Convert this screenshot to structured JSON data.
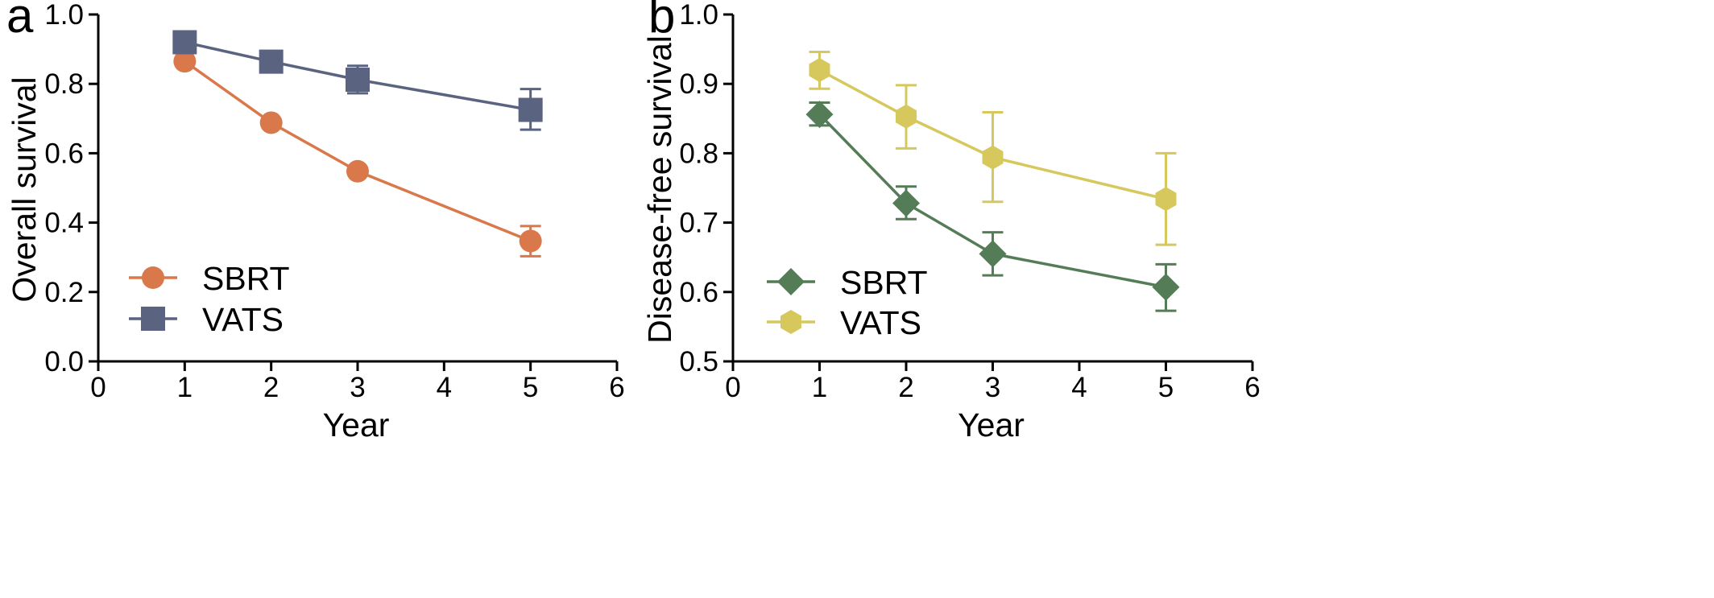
{
  "chart_data": [
    {
      "type": "line",
      "panel_label": "a",
      "title": "",
      "xlabel": "Year",
      "ylabel": "Overall survival",
      "xlim": [
        0,
        6
      ],
      "ylim": [
        0.0,
        1.0
      ],
      "x_ticks": [
        0,
        1,
        2,
        3,
        4,
        5,
        6
      ],
      "y_ticks": [
        0.0,
        0.2,
        0.4,
        0.6,
        0.8,
        1.0
      ],
      "x_tick_labels": [
        "0",
        "1",
        "2",
        "3",
        "4",
        "5",
        "6"
      ],
      "y_tick_labels": [
        "0.0",
        "0.2",
        "0.4",
        "0.6",
        "0.8",
        "1.0"
      ],
      "grid": false,
      "legend_position": "bottom-left",
      "series": [
        {
          "name": "SBRT",
          "color": "#d9784a",
          "marker": "circle",
          "x": [
            1,
            2,
            3,
            5
          ],
          "y": [
            0.865,
            0.688,
            0.548,
            0.347
          ],
          "error_low": [
            0.865,
            0.688,
            0.548,
            0.303
          ],
          "error_high": [
            0.865,
            0.688,
            0.548,
            0.39
          ]
        },
        {
          "name": "VATS",
          "color": "#5a6380",
          "marker": "square",
          "x": [
            1,
            2,
            3,
            5
          ],
          "y": [
            0.92,
            0.864,
            0.812,
            0.725
          ],
          "error_low": [
            0.895,
            0.845,
            0.773,
            0.668
          ],
          "error_high": [
            0.945,
            0.883,
            0.852,
            0.785
          ]
        }
      ]
    },
    {
      "type": "line",
      "panel_label": "b",
      "title": "",
      "xlabel": "Year",
      "ylabel": "Disease-free survival",
      "xlim": [
        0,
        6
      ],
      "ylim": [
        0.5,
        1.0
      ],
      "x_ticks": [
        0,
        1,
        2,
        3,
        4,
        5,
        6
      ],
      "y_ticks": [
        0.5,
        0.6,
        0.7,
        0.8,
        0.9,
        1.0
      ],
      "x_tick_labels": [
        "0",
        "1",
        "2",
        "3",
        "4",
        "5",
        "6"
      ],
      "y_tick_labels": [
        "0.5",
        "0.6",
        "0.7",
        "0.8",
        "0.9",
        "1.0"
      ],
      "grid": false,
      "legend_position": "bottom-left",
      "series": [
        {
          "name": "SBRT",
          "color": "#547d57",
          "marker": "diamond",
          "x": [
            1,
            2,
            3,
            5
          ],
          "y": [
            0.856,
            0.728,
            0.655,
            0.607
          ],
          "error_low": [
            0.84,
            0.705,
            0.624,
            0.573
          ],
          "error_high": [
            0.873,
            0.752,
            0.686,
            0.64
          ]
        },
        {
          "name": "VATS",
          "color": "#d6c85c",
          "marker": "hexagon",
          "x": [
            1,
            2,
            3,
            5
          ],
          "y": [
            0.92,
            0.853,
            0.794,
            0.734
          ],
          "error_low": [
            0.893,
            0.807,
            0.73,
            0.668
          ],
          "error_high": [
            0.946,
            0.898,
            0.859,
            0.8
          ]
        }
      ]
    }
  ]
}
